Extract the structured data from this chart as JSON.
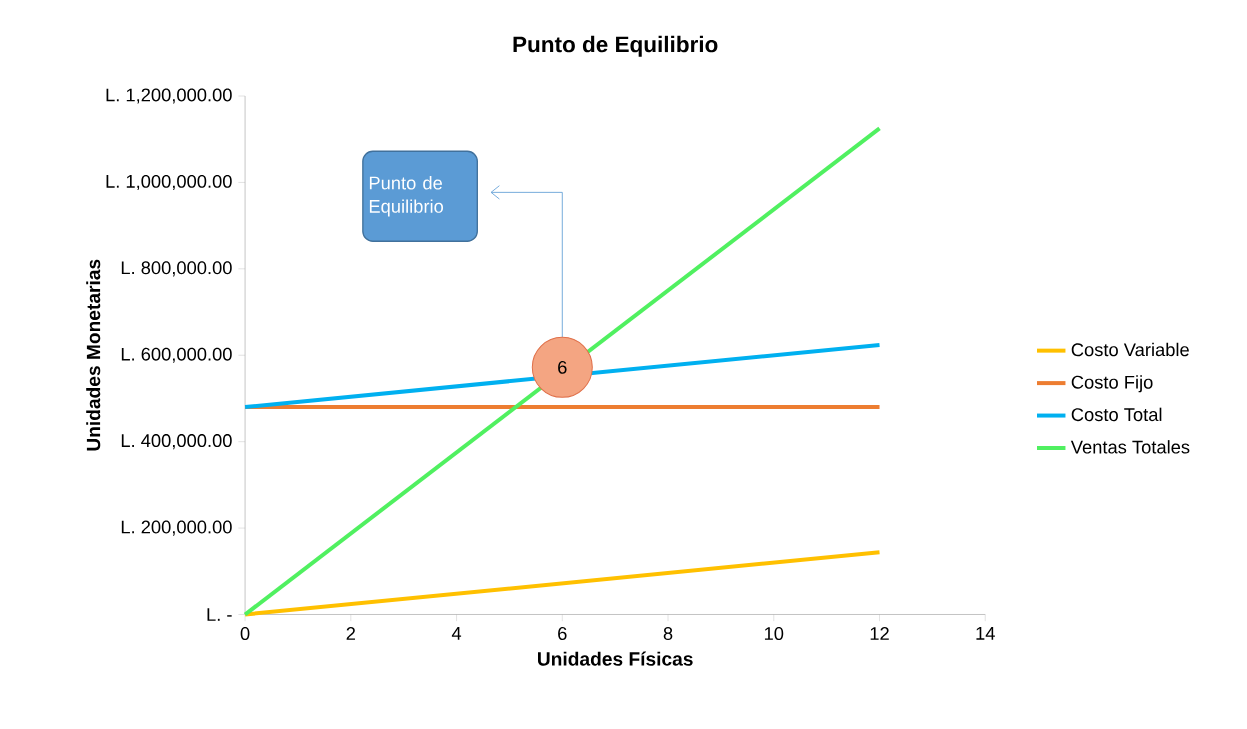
{
  "chart_data": {
    "type": "line",
    "title": "Punto de Equilibrio",
    "xlabel": "Unidades Físicas",
    "ylabel": "Unidades Monetarias",
    "x": [
      0,
      12
    ],
    "series": [
      {
        "name": "Costo Variable",
        "color": "#ffc000",
        "values": [
          0,
          144000
        ]
      },
      {
        "name": "Costo Fijo",
        "color": "#ed7d31",
        "values": [
          480000,
          480000
        ]
      },
      {
        "name": "Costo Total",
        "color": "#00b0f0",
        "values": [
          480000,
          624000
        ]
      },
      {
        "name": "Ventas Totales",
        "color": "#50f060",
        "values": [
          0,
          1125000
        ]
      }
    ],
    "xlim": [
      0,
      14
    ],
    "xticks": [
      0,
      2,
      4,
      6,
      8,
      10,
      12,
      14
    ],
    "ylim": [
      0,
      1200000
    ],
    "yticks": [
      {
        "value": 0,
        "label": "L. -"
      },
      {
        "value": 200000,
        "label": "L. 200,000.00"
      },
      {
        "value": 400000,
        "label": "L. 400,000.00"
      },
      {
        "value": 600000,
        "label": "L. 600,000.00"
      },
      {
        "value": 800000,
        "label": "L. 800,000.00"
      },
      {
        "value": 1000000,
        "label": "L. 1,000,000.00"
      },
      {
        "value": 1200000,
        "label": "L. 1,200,000.00"
      }
    ],
    "annotations": [
      {
        "text": "6",
        "x": 6,
        "y": 572000
      },
      "Punto de Equilibrio"
    ],
    "legend": "right",
    "grid": false,
    "marker": "none",
    "line_style": "solid"
  }
}
